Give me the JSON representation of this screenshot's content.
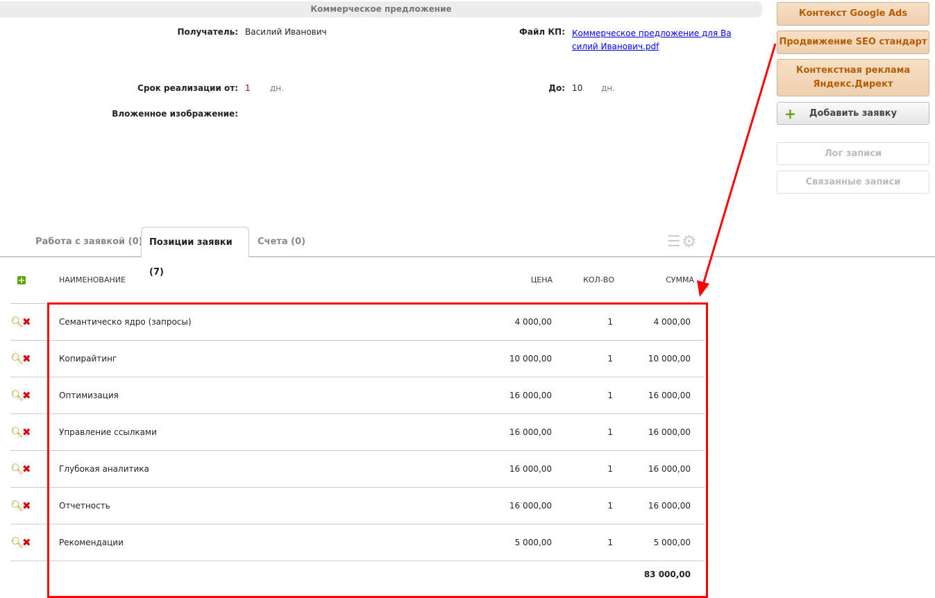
{
  "header": {
    "title": "Коммерческое предложение"
  },
  "form": {
    "recipient_label": "Получатель:",
    "recipient_value": "Василий Иванович",
    "file_label": "Файл КП:",
    "file_link": "Коммерческое предложение для Василий Иванович.pdf",
    "term_from_label": "Срок реализации от:",
    "term_from_value": "1",
    "term_from_unit": "дн.",
    "term_to_label": "До:",
    "term_to_value": "10",
    "term_to_unit": "дн.",
    "image_label": "Вложенное изображение:"
  },
  "sidebar": {
    "buttons": [
      "Контекст Google Ads",
      "Продвижение SEO стандарт",
      "Контекстная реклама Яндекс.Директ"
    ],
    "add_request": "Добавить заявку",
    "log": "Лог записи",
    "linked": "Связанные записи"
  },
  "tabs": [
    {
      "label": "Работа с заявкой (0)"
    },
    {
      "label": "Позиции заявки (7)",
      "active": true
    },
    {
      "label": "Счета (0)"
    }
  ],
  "table": {
    "columns": {
      "name": "НАИМЕНОВАНИЕ",
      "price": "ЦЕНА",
      "qty": "КОЛ-ВО",
      "sum": "СУММА"
    },
    "rows": [
      {
        "name": "Семантическо ядро (запросы)",
        "price": "4 000,00",
        "qty": "1",
        "sum": "4 000,00"
      },
      {
        "name": "Копирайтинг",
        "price": "10 000,00",
        "qty": "1",
        "sum": "10 000,00"
      },
      {
        "name": "Оптимизация",
        "price": "16 000,00",
        "qty": "1",
        "sum": "16 000,00"
      },
      {
        "name": "Управление ссылками",
        "price": "16 000,00",
        "qty": "1",
        "sum": "16 000,00"
      },
      {
        "name": "Глубокая аналитика",
        "price": "16 000,00",
        "qty": "1",
        "sum": "16 000,00"
      },
      {
        "name": "Отчетность",
        "price": "16 000,00",
        "qty": "1",
        "sum": "16 000,00"
      },
      {
        "name": "Рекомендации",
        "price": "5 000,00",
        "qty": "1",
        "sum": "5 000,00"
      }
    ],
    "total": "83 000,00"
  },
  "colors": {
    "accent_button": "#f3d5b5",
    "accent_text": "#b35c00",
    "annotation": "#ff0000",
    "link": "#0000ee"
  }
}
